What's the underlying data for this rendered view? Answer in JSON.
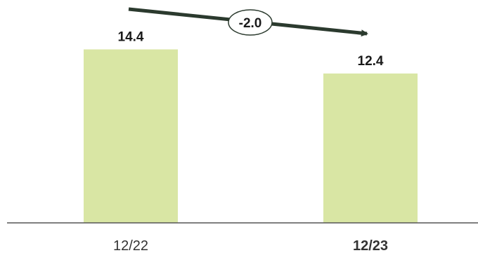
{
  "chart_data": {
    "type": "bar",
    "categories": [
      "12/22",
      "12/23"
    ],
    "values": [
      14.4,
      12.4
    ],
    "value_labels": [
      "14.4",
      "12.4"
    ],
    "ylim": [
      0,
      18.5
    ],
    "grid": false,
    "bar_color": "#d9e6a4",
    "highlight_category_color": "#8ab82c",
    "highlight_index": 1,
    "axis_color": "#555555",
    "annotation": {
      "type": "change-arrow",
      "text": "-2.0",
      "from": "12/22",
      "to": "12/23",
      "color": "#2b3a2e"
    }
  }
}
